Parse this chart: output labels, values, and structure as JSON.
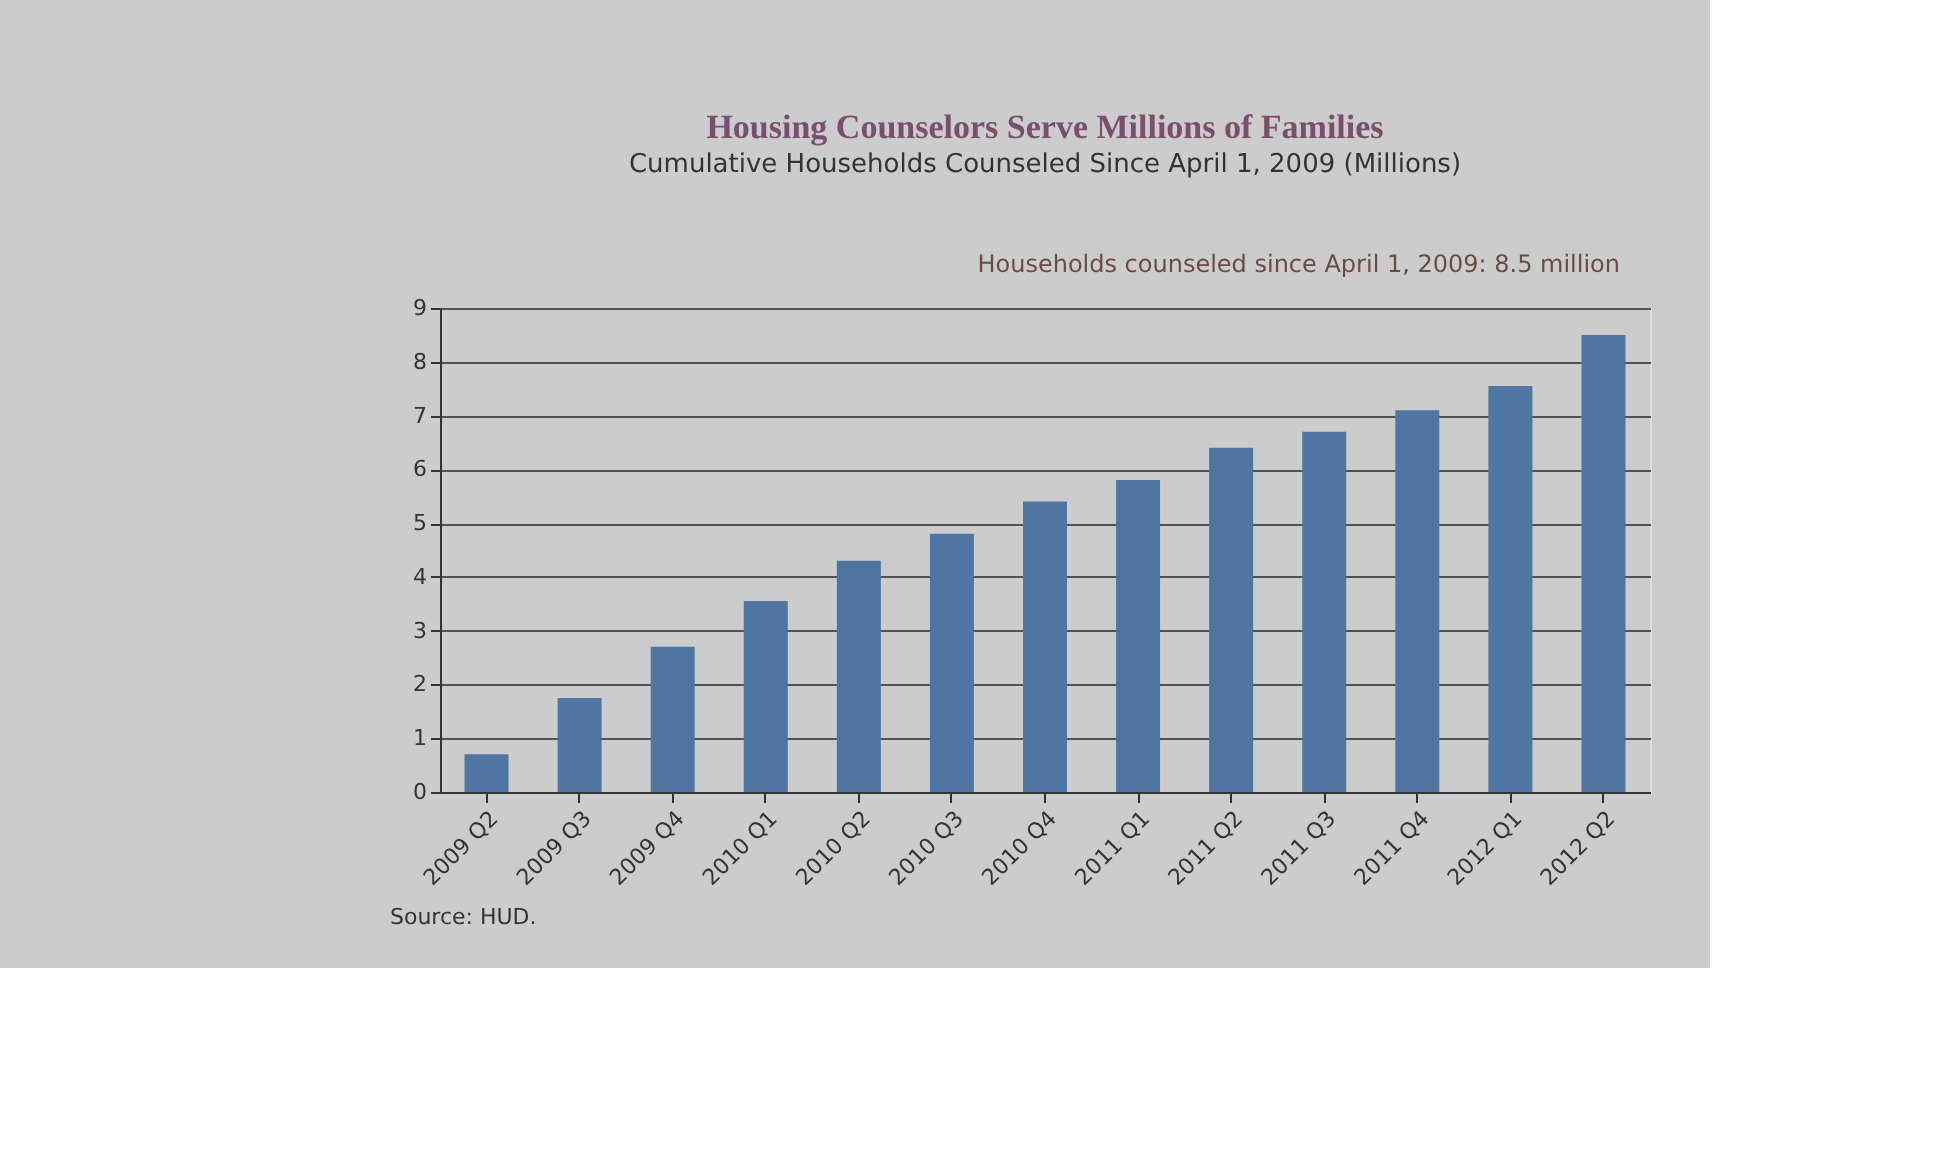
{
  "chart_data": {
    "type": "bar",
    "title": "Housing Counselors Serve Millions of Families",
    "subtitle": "Cumulative Households Counseled Since April 1, 2009 (Millions)",
    "categories": [
      "2009 Q2",
      "2009 Q3",
      "2009 Q4",
      "2010 Q1",
      "2010 Q2",
      "2010 Q3",
      "2010 Q4",
      "2011 Q1",
      "2011 Q2",
      "2011 Q3",
      "2011 Q4",
      "2012 Q1",
      "2012 Q2"
    ],
    "values": [
      0.7,
      1.75,
      2.7,
      3.55,
      4.3,
      4.8,
      5.4,
      5.8,
      6.4,
      6.7,
      7.1,
      7.55,
      8.5
    ],
    "color": "#4f76a3",
    "ylim": [
      0,
      9
    ],
    "yticks": [
      0,
      1,
      2,
      3,
      4,
      5,
      6,
      7,
      8,
      9
    ],
    "grid": "y",
    "annotations": [
      "Households counseled  since  April 1, 2009: 8.5 million",
      "Source:  HUD."
    ]
  }
}
